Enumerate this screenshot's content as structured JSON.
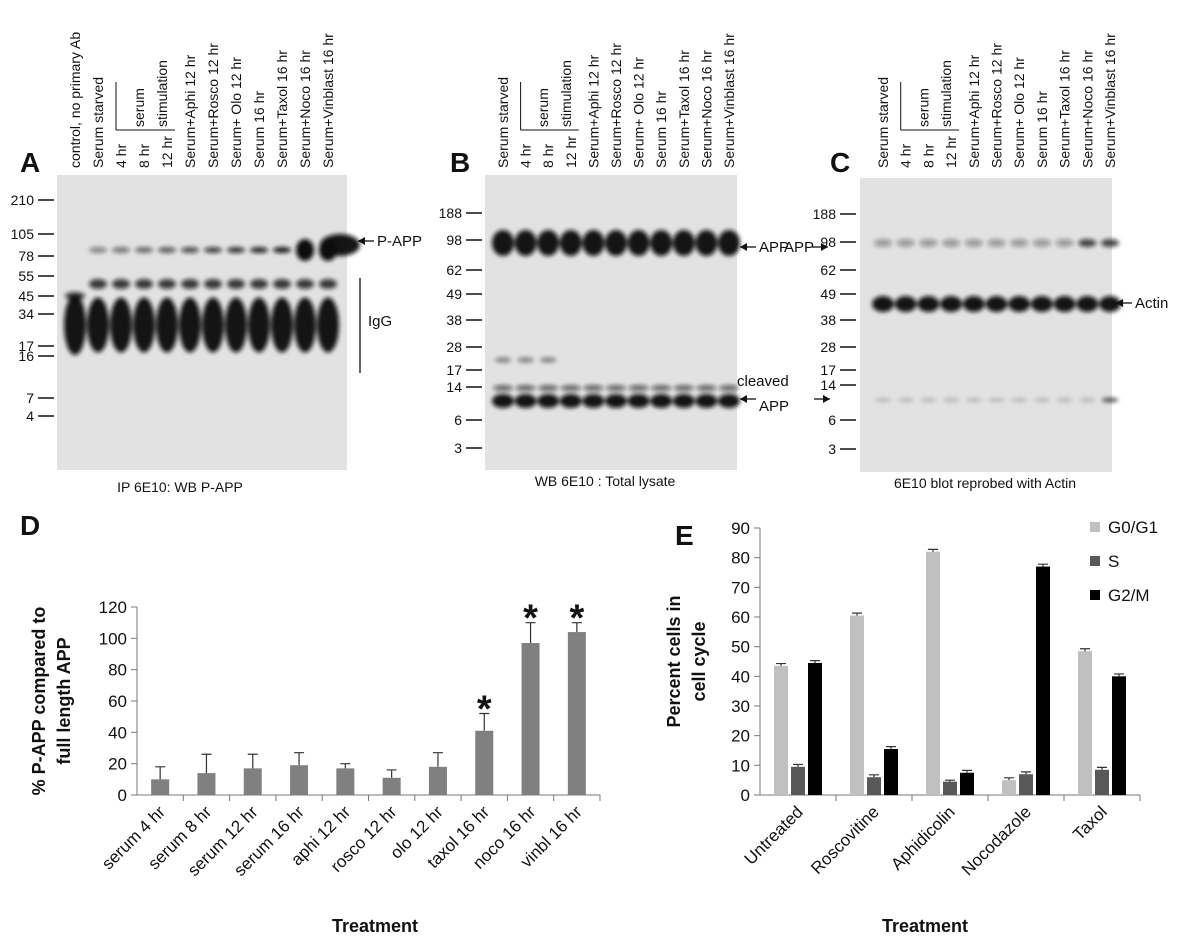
{
  "panels": [
    {
      "letter": "A",
      "lanes": [
        "control, no primary Ab",
        "Serum starved",
        "4 hr",
        "8 hr",
        "12 hr",
        "Serum+Aphi 12 hr",
        "Serum+Rosco 12 hr",
        "Serum+ Olo 12 hr",
        "Serum 16 hr",
        "Serum+Taxol 16 hr",
        "Serum+Noco 16 hr",
        "Serum+Vinblast 16 hr"
      ],
      "bracket_label": [
        "serum",
        "stimulation"
      ],
      "markers": [
        "210",
        "105",
        "78",
        "55",
        "45",
        "34",
        "17",
        "16",
        "7",
        "4"
      ],
      "annotations": [
        "P-APP",
        "IgG"
      ],
      "caption": "IP 6E10: WB P-APP"
    },
    {
      "letter": "B",
      "lanes": [
        "Serum starved",
        "4 hr",
        "8 hr",
        "12 hr",
        "Serum+Aphi 12 hr",
        "Serum+Rosco 12 hr",
        "Serum+ Olo 12 hr",
        "Serum 16 hr",
        "Serum+Taxol 16 hr",
        "Serum+Noco 16 hr",
        "Serum+Vinblast 16 hr"
      ],
      "bracket_label": [
        "serum",
        "stimulation"
      ],
      "markers": [
        "188",
        "98",
        "62",
        "49",
        "38",
        "28",
        "17",
        "14",
        "6",
        "3"
      ],
      "annotations": [
        "APP",
        "cleaved",
        "APP"
      ],
      "caption": "WB 6E10 : Total lysate"
    },
    {
      "letter": "C",
      "lanes": [
        "Serum starved",
        "4 hr",
        "8 hr",
        "12 hr",
        "Serum+Aphi 12 hr",
        "Serum+Rosco 12 hr",
        "Serum+ Olo 12 hr",
        "Serum 16 hr",
        "Serum+Taxol 16 hr",
        "Serum+Noco 16 hr",
        "Serum+Vinblast 16 hr"
      ],
      "bracket_label": [
        "serum",
        "stimulation"
      ],
      "markers": [
        "188",
        "98",
        "62",
        "49",
        "38",
        "28",
        "17",
        "14",
        "6",
        "3"
      ],
      "annotations": [
        "APP",
        "Actin"
      ],
      "caption": "6E10 blot reprobed with Actin"
    }
  ],
  "chart_data": [
    {
      "type": "bar",
      "letter": "D",
      "ylabel": [
        "% P-APP compared to",
        "full length APP"
      ],
      "xlabel": "Treatment",
      "categories": [
        "serum 4 hr",
        "serum 8 hr",
        "serum 12 hr",
        "serum 16 hr",
        "aphi 12 hr",
        "rosco 12 hr",
        "olo 12 hr",
        "taxol 16 hr",
        "noco 16 hr",
        "vinbl 16 hr"
      ],
      "values": [
        10,
        14,
        17,
        19,
        17,
        11,
        18,
        41,
        97,
        104
      ],
      "errors": [
        8,
        12,
        9,
        8,
        3,
        5,
        9,
        11,
        13,
        6
      ],
      "color": "#808080",
      "annotations": [
        {
          "text": "*",
          "category": "taxol 16 hr"
        },
        {
          "text": "*",
          "category": "noco 16 hr"
        },
        {
          "text": "*",
          "category": "vinbl 16 hr"
        }
      ],
      "ylim": [
        0,
        120
      ],
      "yticks": [
        0,
        20,
        40,
        60,
        80,
        100,
        120
      ]
    },
    {
      "type": "grouped-bar",
      "letter": "E",
      "ylabel": [
        "Percent cells in",
        "cell cycle"
      ],
      "xlabel": "Treatment",
      "categories": [
        "Untreated",
        "Roscovitine",
        "Aphidicolin",
        "Nocodazole",
        "Taxol"
      ],
      "series": [
        {
          "name": "G0/G1",
          "color": "#c0c0c0",
          "values": [
            43.5,
            60.5,
            82,
            5,
            48.5
          ],
          "errors": [
            0.8,
            0.8,
            0.8,
            0.8,
            0.8
          ]
        },
        {
          "name": "S",
          "color": "#595959",
          "values": [
            9.5,
            6,
            4.5,
            7,
            8.5
          ],
          "errors": [
            0.8,
            0.8,
            0.5,
            0.8,
            0.8
          ]
        },
        {
          "name": "G2/M",
          "color": "#000000",
          "values": [
            44.5,
            15.5,
            7.5,
            77,
            40
          ],
          "errors": [
            0.8,
            0.8,
            0.8,
            0.8,
            0.8
          ]
        }
      ],
      "legend": "upper right",
      "ylim": [
        0,
        90
      ],
      "yticks": [
        0,
        10,
        20,
        30,
        40,
        50,
        60,
        70,
        80,
        90
      ]
    }
  ]
}
